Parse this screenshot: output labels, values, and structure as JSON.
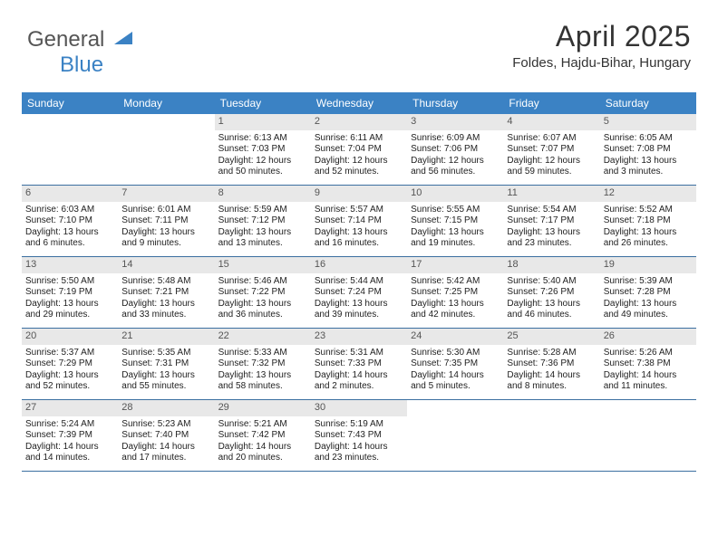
{
  "logo": {
    "text1": "General",
    "text2": "Blue"
  },
  "title": "April 2025",
  "location": "Foldes, Hajdu-Bihar, Hungary",
  "colors": {
    "header_bg": "#3b82c4",
    "header_fg": "#ffffff",
    "daynum_bg": "#e8e8e8",
    "row_border": "#3b6fa0",
    "logo_blue": "#3b82c4",
    "text": "#222222"
  },
  "dayNames": [
    "Sunday",
    "Monday",
    "Tuesday",
    "Wednesday",
    "Thursday",
    "Friday",
    "Saturday"
  ],
  "weeks": [
    [
      {
        "n": "",
        "sunrise": "",
        "sunset": "",
        "daylight": ""
      },
      {
        "n": "",
        "sunrise": "",
        "sunset": "",
        "daylight": ""
      },
      {
        "n": "1",
        "sunrise": "Sunrise: 6:13 AM",
        "sunset": "Sunset: 7:03 PM",
        "daylight": "Daylight: 12 hours and 50 minutes."
      },
      {
        "n": "2",
        "sunrise": "Sunrise: 6:11 AM",
        "sunset": "Sunset: 7:04 PM",
        "daylight": "Daylight: 12 hours and 52 minutes."
      },
      {
        "n": "3",
        "sunrise": "Sunrise: 6:09 AM",
        "sunset": "Sunset: 7:06 PM",
        "daylight": "Daylight: 12 hours and 56 minutes."
      },
      {
        "n": "4",
        "sunrise": "Sunrise: 6:07 AM",
        "sunset": "Sunset: 7:07 PM",
        "daylight": "Daylight: 12 hours and 59 minutes."
      },
      {
        "n": "5",
        "sunrise": "Sunrise: 6:05 AM",
        "sunset": "Sunset: 7:08 PM",
        "daylight": "Daylight: 13 hours and 3 minutes."
      }
    ],
    [
      {
        "n": "6",
        "sunrise": "Sunrise: 6:03 AM",
        "sunset": "Sunset: 7:10 PM",
        "daylight": "Daylight: 13 hours and 6 minutes."
      },
      {
        "n": "7",
        "sunrise": "Sunrise: 6:01 AM",
        "sunset": "Sunset: 7:11 PM",
        "daylight": "Daylight: 13 hours and 9 minutes."
      },
      {
        "n": "8",
        "sunrise": "Sunrise: 5:59 AM",
        "sunset": "Sunset: 7:12 PM",
        "daylight": "Daylight: 13 hours and 13 minutes."
      },
      {
        "n": "9",
        "sunrise": "Sunrise: 5:57 AM",
        "sunset": "Sunset: 7:14 PM",
        "daylight": "Daylight: 13 hours and 16 minutes."
      },
      {
        "n": "10",
        "sunrise": "Sunrise: 5:55 AM",
        "sunset": "Sunset: 7:15 PM",
        "daylight": "Daylight: 13 hours and 19 minutes."
      },
      {
        "n": "11",
        "sunrise": "Sunrise: 5:54 AM",
        "sunset": "Sunset: 7:17 PM",
        "daylight": "Daylight: 13 hours and 23 minutes."
      },
      {
        "n": "12",
        "sunrise": "Sunrise: 5:52 AM",
        "sunset": "Sunset: 7:18 PM",
        "daylight": "Daylight: 13 hours and 26 minutes."
      }
    ],
    [
      {
        "n": "13",
        "sunrise": "Sunrise: 5:50 AM",
        "sunset": "Sunset: 7:19 PM",
        "daylight": "Daylight: 13 hours and 29 minutes."
      },
      {
        "n": "14",
        "sunrise": "Sunrise: 5:48 AM",
        "sunset": "Sunset: 7:21 PM",
        "daylight": "Daylight: 13 hours and 33 minutes."
      },
      {
        "n": "15",
        "sunrise": "Sunrise: 5:46 AM",
        "sunset": "Sunset: 7:22 PM",
        "daylight": "Daylight: 13 hours and 36 minutes."
      },
      {
        "n": "16",
        "sunrise": "Sunrise: 5:44 AM",
        "sunset": "Sunset: 7:24 PM",
        "daylight": "Daylight: 13 hours and 39 minutes."
      },
      {
        "n": "17",
        "sunrise": "Sunrise: 5:42 AM",
        "sunset": "Sunset: 7:25 PM",
        "daylight": "Daylight: 13 hours and 42 minutes."
      },
      {
        "n": "18",
        "sunrise": "Sunrise: 5:40 AM",
        "sunset": "Sunset: 7:26 PM",
        "daylight": "Daylight: 13 hours and 46 minutes."
      },
      {
        "n": "19",
        "sunrise": "Sunrise: 5:39 AM",
        "sunset": "Sunset: 7:28 PM",
        "daylight": "Daylight: 13 hours and 49 minutes."
      }
    ],
    [
      {
        "n": "20",
        "sunrise": "Sunrise: 5:37 AM",
        "sunset": "Sunset: 7:29 PM",
        "daylight": "Daylight: 13 hours and 52 minutes."
      },
      {
        "n": "21",
        "sunrise": "Sunrise: 5:35 AM",
        "sunset": "Sunset: 7:31 PM",
        "daylight": "Daylight: 13 hours and 55 minutes."
      },
      {
        "n": "22",
        "sunrise": "Sunrise: 5:33 AM",
        "sunset": "Sunset: 7:32 PM",
        "daylight": "Daylight: 13 hours and 58 minutes."
      },
      {
        "n": "23",
        "sunrise": "Sunrise: 5:31 AM",
        "sunset": "Sunset: 7:33 PM",
        "daylight": "Daylight: 14 hours and 2 minutes."
      },
      {
        "n": "24",
        "sunrise": "Sunrise: 5:30 AM",
        "sunset": "Sunset: 7:35 PM",
        "daylight": "Daylight: 14 hours and 5 minutes."
      },
      {
        "n": "25",
        "sunrise": "Sunrise: 5:28 AM",
        "sunset": "Sunset: 7:36 PM",
        "daylight": "Daylight: 14 hours and 8 minutes."
      },
      {
        "n": "26",
        "sunrise": "Sunrise: 5:26 AM",
        "sunset": "Sunset: 7:38 PM",
        "daylight": "Daylight: 14 hours and 11 minutes."
      }
    ],
    [
      {
        "n": "27",
        "sunrise": "Sunrise: 5:24 AM",
        "sunset": "Sunset: 7:39 PM",
        "daylight": "Daylight: 14 hours and 14 minutes."
      },
      {
        "n": "28",
        "sunrise": "Sunrise: 5:23 AM",
        "sunset": "Sunset: 7:40 PM",
        "daylight": "Daylight: 14 hours and 17 minutes."
      },
      {
        "n": "29",
        "sunrise": "Sunrise: 5:21 AM",
        "sunset": "Sunset: 7:42 PM",
        "daylight": "Daylight: 14 hours and 20 minutes."
      },
      {
        "n": "30",
        "sunrise": "Sunrise: 5:19 AM",
        "sunset": "Sunset: 7:43 PM",
        "daylight": "Daylight: 14 hours and 23 minutes."
      },
      {
        "n": "",
        "sunrise": "",
        "sunset": "",
        "daylight": ""
      },
      {
        "n": "",
        "sunrise": "",
        "sunset": "",
        "daylight": ""
      },
      {
        "n": "",
        "sunrise": "",
        "sunset": "",
        "daylight": ""
      }
    ]
  ]
}
